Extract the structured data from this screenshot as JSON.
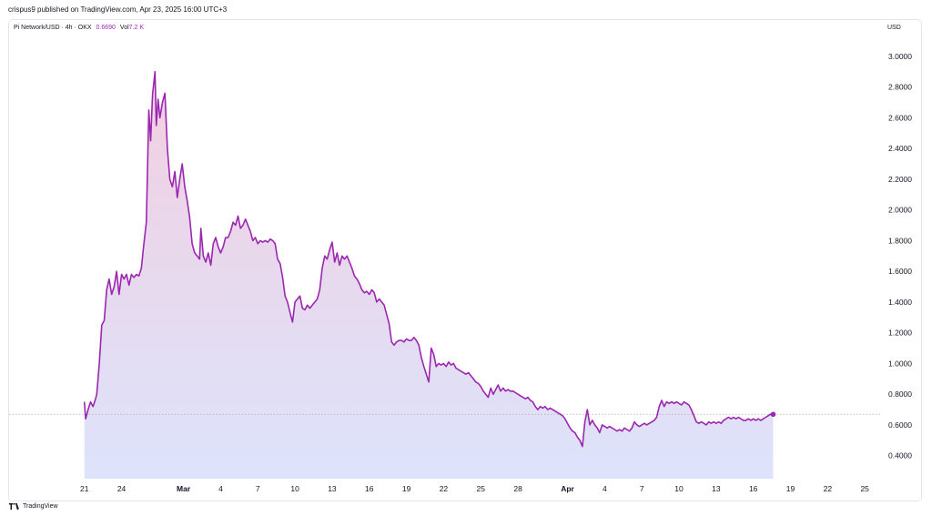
{
  "header": {
    "published_line": "crispus9 published on TradingView.com, Apr 23, 2025 16:00 UTC+3"
  },
  "legend": {
    "symbol": "Pi Network/USD · 4h · OKX",
    "last_price": "0.6690",
    "vol_label": "Vol",
    "vol_value": "7.2 K"
  },
  "price_axis": {
    "currency": "USD"
  },
  "footer": {
    "brand": "TradingView"
  },
  "colors": {
    "line": "#9b27b0",
    "area_top": "#f2cfe0",
    "area_bottom": "#dde3fb",
    "baseline": "#c99bb5"
  },
  "chart_data": {
    "type": "area",
    "title": "",
    "series_name": "Pi Network/USD",
    "ylim": [
      0.25,
      3.1
    ],
    "y_ticks": [
      0.4,
      0.6,
      0.8,
      1.0,
      1.2,
      1.4,
      1.6,
      1.8,
      2.0,
      2.2,
      2.4,
      2.6,
      2.8,
      3.0
    ],
    "y_tick_labels": [
      "0.4000",
      "0.6000",
      "0.8000",
      "1.0000",
      "1.2000",
      "1.4000",
      "1.6000",
      "1.8000",
      "2.0000",
      "2.2000",
      "2.4000",
      "2.6000",
      "2.8000",
      "3.0000"
    ],
    "x_ticks": [
      {
        "day": 0,
        "label": "21",
        "bold": false
      },
      {
        "day": 3,
        "label": "24",
        "bold": false
      },
      {
        "day": 8,
        "label": "Mar",
        "bold": true
      },
      {
        "day": 11,
        "label": "4",
        "bold": false
      },
      {
        "day": 14,
        "label": "7",
        "bold": false
      },
      {
        "day": 17,
        "label": "10",
        "bold": false
      },
      {
        "day": 20,
        "label": "13",
        "bold": false
      },
      {
        "day": 23,
        "label": "16",
        "bold": false
      },
      {
        "day": 26,
        "label": "19",
        "bold": false
      },
      {
        "day": 29,
        "label": "22",
        "bold": false
      },
      {
        "day": 32,
        "label": "25",
        "bold": false
      },
      {
        "day": 35,
        "label": "28",
        "bold": false
      },
      {
        "day": 39,
        "label": "Apr",
        "bold": true
      },
      {
        "day": 42,
        "label": "4",
        "bold": false
      },
      {
        "day": 45,
        "label": "7",
        "bold": false
      },
      {
        "day": 48,
        "label": "10",
        "bold": false
      },
      {
        "day": 51,
        "label": "13",
        "bold": false
      },
      {
        "day": 54,
        "label": "16",
        "bold": false
      },
      {
        "day": 57,
        "label": "19",
        "bold": false
      },
      {
        "day": 60,
        "label": "22",
        "bold": false
      },
      {
        "day": 63,
        "label": "25",
        "bold": false
      }
    ],
    "xlim": [
      -0.2,
      63.5
    ],
    "last_value": 0.669,
    "points": [
      [
        0.0,
        0.75
      ],
      [
        0.1,
        0.64
      ],
      [
        0.3,
        0.7
      ],
      [
        0.5,
        0.75
      ],
      [
        0.7,
        0.72
      ],
      [
        0.9,
        0.77
      ],
      [
        1.0,
        0.8
      ],
      [
        1.2,
        1.0
      ],
      [
        1.4,
        1.25
      ],
      [
        1.6,
        1.28
      ],
      [
        1.8,
        1.48
      ],
      [
        2.0,
        1.55
      ],
      [
        2.2,
        1.45
      ],
      [
        2.4,
        1.5
      ],
      [
        2.6,
        1.6
      ],
      [
        2.8,
        1.45
      ],
      [
        3.0,
        1.58
      ],
      [
        3.2,
        1.55
      ],
      [
        3.4,
        1.58
      ],
      [
        3.6,
        1.51
      ],
      [
        3.8,
        1.58
      ],
      [
        4.0,
        1.56
      ],
      [
        4.2,
        1.58
      ],
      [
        4.4,
        1.57
      ],
      [
        4.6,
        1.62
      ],
      [
        4.8,
        1.78
      ],
      [
        5.0,
        1.92
      ],
      [
        5.2,
        2.65
      ],
      [
        5.35,
        2.45
      ],
      [
        5.5,
        2.75
      ],
      [
        5.7,
        2.9
      ],
      [
        5.8,
        2.55
      ],
      [
        5.95,
        2.72
      ],
      [
        6.1,
        2.6
      ],
      [
        6.3,
        2.7
      ],
      [
        6.5,
        2.76
      ],
      [
        6.7,
        2.4
      ],
      [
        6.9,
        2.2
      ],
      [
        7.1,
        2.15
      ],
      [
        7.3,
        2.25
      ],
      [
        7.5,
        2.08
      ],
      [
        7.7,
        2.2
      ],
      [
        7.9,
        2.3
      ],
      [
        8.1,
        2.15
      ],
      [
        8.3,
        2.06
      ],
      [
        8.5,
        1.95
      ],
      [
        8.7,
        1.78
      ],
      [
        8.9,
        1.72
      ],
      [
        9.1,
        1.7
      ],
      [
        9.3,
        1.68
      ],
      [
        9.4,
        1.88
      ],
      [
        9.6,
        1.7
      ],
      [
        9.8,
        1.66
      ],
      [
        10.0,
        1.72
      ],
      [
        10.2,
        1.64
      ],
      [
        10.4,
        1.78
      ],
      [
        10.6,
        1.82
      ],
      [
        10.8,
        1.76
      ],
      [
        11.0,
        1.72
      ],
      [
        11.2,
        1.76
      ],
      [
        11.4,
        1.82
      ],
      [
        11.6,
        1.82
      ],
      [
        11.8,
        1.86
      ],
      [
        12.0,
        1.92
      ],
      [
        12.2,
        1.9
      ],
      [
        12.4,
        1.96
      ],
      [
        12.6,
        1.88
      ],
      [
        12.8,
        1.9
      ],
      [
        13.0,
        1.94
      ],
      [
        13.2,
        1.9
      ],
      [
        13.4,
        1.86
      ],
      [
        13.6,
        1.8
      ],
      [
        13.8,
        1.82
      ],
      [
        14.0,
        1.78
      ],
      [
        14.2,
        1.8
      ],
      [
        14.4,
        1.79
      ],
      [
        14.6,
        1.8
      ],
      [
        14.8,
        1.79
      ],
      [
        15.0,
        1.81
      ],
      [
        15.2,
        1.8
      ],
      [
        15.4,
        1.78
      ],
      [
        15.6,
        1.68
      ],
      [
        15.8,
        1.65
      ],
      [
        16.0,
        1.56
      ],
      [
        16.2,
        1.44
      ],
      [
        16.4,
        1.4
      ],
      [
        16.6,
        1.33
      ],
      [
        16.8,
        1.27
      ],
      [
        17.0,
        1.4
      ],
      [
        17.2,
        1.42
      ],
      [
        17.4,
        1.44
      ],
      [
        17.6,
        1.36
      ],
      [
        17.8,
        1.35
      ],
      [
        18.0,
        1.38
      ],
      [
        18.2,
        1.36
      ],
      [
        18.4,
        1.38
      ],
      [
        18.6,
        1.4
      ],
      [
        18.8,
        1.42
      ],
      [
        19.0,
        1.48
      ],
      [
        19.2,
        1.62
      ],
      [
        19.4,
        1.7
      ],
      [
        19.6,
        1.68
      ],
      [
        19.8,
        1.74
      ],
      [
        20.0,
        1.79
      ],
      [
        20.2,
        1.66
      ],
      [
        20.4,
        1.72
      ],
      [
        20.6,
        1.64
      ],
      [
        20.8,
        1.7
      ],
      [
        21.0,
        1.68
      ],
      [
        21.2,
        1.7
      ],
      [
        21.4,
        1.66
      ],
      [
        21.6,
        1.62
      ],
      [
        21.8,
        1.57
      ],
      [
        22.0,
        1.55
      ],
      [
        22.2,
        1.52
      ],
      [
        22.4,
        1.48
      ],
      [
        22.6,
        1.46
      ],
      [
        22.8,
        1.47
      ],
      [
        23.0,
        1.45
      ],
      [
        23.2,
        1.48
      ],
      [
        23.4,
        1.46
      ],
      [
        23.6,
        1.4
      ],
      [
        23.8,
        1.42
      ],
      [
        24.0,
        1.4
      ],
      [
        24.2,
        1.38
      ],
      [
        24.4,
        1.32
      ],
      [
        24.6,
        1.26
      ],
      [
        24.8,
        1.14
      ],
      [
        25.0,
        1.12
      ],
      [
        25.2,
        1.14
      ],
      [
        25.4,
        1.15
      ],
      [
        25.6,
        1.15
      ],
      [
        25.8,
        1.14
      ],
      [
        26.0,
        1.16
      ],
      [
        26.2,
        1.15
      ],
      [
        26.4,
        1.15
      ],
      [
        26.6,
        1.17
      ],
      [
        26.8,
        1.15
      ],
      [
        27.0,
        1.12
      ],
      [
        27.2,
        1.04
      ],
      [
        27.4,
        0.98
      ],
      [
        27.6,
        0.93
      ],
      [
        27.8,
        0.88
      ],
      [
        28.0,
        1.1
      ],
      [
        28.2,
        1.06
      ],
      [
        28.4,
        0.98
      ],
      [
        28.6,
        1.0
      ],
      [
        28.8,
        0.99
      ],
      [
        29.0,
        1.0
      ],
      [
        29.2,
        0.98
      ],
      [
        29.4,
        1.01
      ],
      [
        29.6,
        0.99
      ],
      [
        29.8,
        1.0
      ],
      [
        30.0,
        0.97
      ],
      [
        30.2,
        0.96
      ],
      [
        30.4,
        0.95
      ],
      [
        30.6,
        0.94
      ],
      [
        30.8,
        0.93
      ],
      [
        31.0,
        0.94
      ],
      [
        31.2,
        0.92
      ],
      [
        31.4,
        0.9
      ],
      [
        31.6,
        0.88
      ],
      [
        31.8,
        0.87
      ],
      [
        32.0,
        0.85
      ],
      [
        32.2,
        0.82
      ],
      [
        32.4,
        0.8
      ],
      [
        32.6,
        0.78
      ],
      [
        32.8,
        0.84
      ],
      [
        33.0,
        0.8
      ],
      [
        33.2,
        0.83
      ],
      [
        33.4,
        0.86
      ],
      [
        33.6,
        0.82
      ],
      [
        33.8,
        0.84
      ],
      [
        34.0,
        0.82
      ],
      [
        34.2,
        0.83
      ],
      [
        34.4,
        0.82
      ],
      [
        34.6,
        0.82
      ],
      [
        34.8,
        0.81
      ],
      [
        35.0,
        0.8
      ],
      [
        35.2,
        0.79
      ],
      [
        35.4,
        0.78
      ],
      [
        35.6,
        0.77
      ],
      [
        35.8,
        0.78
      ],
      [
        36.0,
        0.76
      ],
      [
        36.2,
        0.75
      ],
      [
        36.4,
        0.72
      ],
      [
        36.6,
        0.7
      ],
      [
        36.8,
        0.72
      ],
      [
        37.0,
        0.71
      ],
      [
        37.2,
        0.72
      ],
      [
        37.4,
        0.7
      ],
      [
        37.6,
        0.71
      ],
      [
        37.8,
        0.7
      ],
      [
        38.0,
        0.69
      ],
      [
        38.2,
        0.68
      ],
      [
        38.4,
        0.67
      ],
      [
        38.6,
        0.66
      ],
      [
        38.8,
        0.64
      ],
      [
        39.0,
        0.61
      ],
      [
        39.2,
        0.58
      ],
      [
        39.4,
        0.56
      ],
      [
        39.6,
        0.55
      ],
      [
        39.8,
        0.52
      ],
      [
        40.0,
        0.5
      ],
      [
        40.2,
        0.46
      ],
      [
        40.4,
        0.62
      ],
      [
        40.6,
        0.7
      ],
      [
        40.8,
        0.6
      ],
      [
        41.0,
        0.63
      ],
      [
        41.2,
        0.6
      ],
      [
        41.4,
        0.58
      ],
      [
        41.6,
        0.55
      ],
      [
        41.8,
        0.6
      ],
      [
        42.0,
        0.59
      ],
      [
        42.2,
        0.58
      ],
      [
        42.4,
        0.59
      ],
      [
        42.6,
        0.58
      ],
      [
        42.8,
        0.57
      ],
      [
        43.0,
        0.56
      ],
      [
        43.2,
        0.57
      ],
      [
        43.4,
        0.56
      ],
      [
        43.6,
        0.58
      ],
      [
        43.8,
        0.57
      ],
      [
        44.0,
        0.56
      ],
      [
        44.2,
        0.58
      ],
      [
        44.4,
        0.62
      ],
      [
        44.6,
        0.6
      ],
      [
        44.8,
        0.59
      ],
      [
        45.0,
        0.6
      ],
      [
        45.2,
        0.61
      ],
      [
        45.4,
        0.6
      ],
      [
        45.6,
        0.61
      ],
      [
        45.8,
        0.62
      ],
      [
        46.0,
        0.63
      ],
      [
        46.2,
        0.65
      ],
      [
        46.4,
        0.72
      ],
      [
        46.6,
        0.76
      ],
      [
        46.8,
        0.72
      ],
      [
        47.0,
        0.75
      ],
      [
        47.2,
        0.74
      ],
      [
        47.4,
        0.75
      ],
      [
        47.6,
        0.74
      ],
      [
        47.8,
        0.75
      ],
      [
        48.0,
        0.74
      ],
      [
        48.2,
        0.73
      ],
      [
        48.4,
        0.75
      ],
      [
        48.6,
        0.74
      ],
      [
        48.8,
        0.73
      ],
      [
        49.0,
        0.7
      ],
      [
        49.2,
        0.66
      ],
      [
        49.4,
        0.62
      ],
      [
        49.6,
        0.61
      ],
      [
        49.8,
        0.62
      ],
      [
        50.0,
        0.61
      ],
      [
        50.2,
        0.6
      ],
      [
        50.4,
        0.62
      ],
      [
        50.6,
        0.61
      ],
      [
        50.8,
        0.62
      ],
      [
        51.0,
        0.61
      ],
      [
        51.2,
        0.62
      ],
      [
        51.4,
        0.61
      ],
      [
        51.6,
        0.63
      ],
      [
        51.8,
        0.64
      ],
      [
        52.0,
        0.65
      ],
      [
        52.2,
        0.64
      ],
      [
        52.4,
        0.65
      ],
      [
        52.6,
        0.64
      ],
      [
        52.8,
        0.65
      ],
      [
        53.0,
        0.64
      ],
      [
        53.2,
        0.63
      ],
      [
        53.4,
        0.63
      ],
      [
        53.6,
        0.64
      ],
      [
        53.8,
        0.63
      ],
      [
        54.0,
        0.64
      ],
      [
        54.2,
        0.63
      ],
      [
        54.4,
        0.64
      ],
      [
        54.6,
        0.63
      ],
      [
        54.8,
        0.64
      ],
      [
        55.0,
        0.65
      ],
      [
        55.2,
        0.66
      ],
      [
        55.4,
        0.67
      ],
      [
        55.6,
        0.669
      ]
    ]
  }
}
